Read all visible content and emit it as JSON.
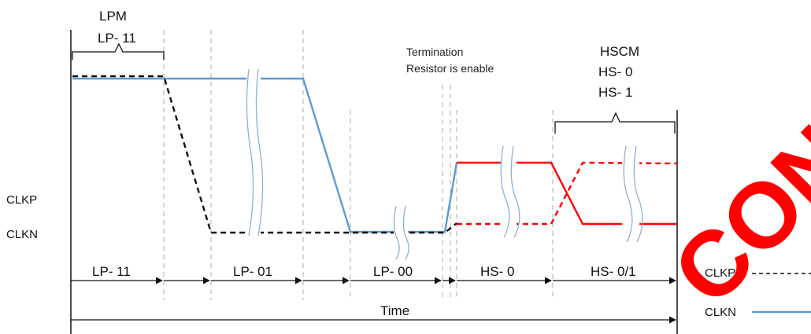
{
  "labels": {
    "lpm": "LPM",
    "lp11_top": "LP- 11",
    "termination_line1": "Termination",
    "termination_line2": "Resistor is enable",
    "hscm": "HSCM",
    "hs0_top": "HS- 0",
    "hs1_top": "HS- 1",
    "clkp_side": "CLKP",
    "clkn_side": "CLKN",
    "time": "Time"
  },
  "states": [
    "LP- 11",
    "LP- 01",
    "LP- 00",
    "HS- 0",
    "HS- 0/1"
  ],
  "legend": [
    {
      "name": "CLKP",
      "style": "dashed",
      "color": "#111111"
    },
    {
      "name": "CLKN",
      "style": "solid",
      "color": "#5b9bd5"
    }
  ],
  "watermark": "CONFIDENTIAL",
  "colors": {
    "clkp": "#111111",
    "clkn": "#5b9bd5",
    "hs": "#ff0000",
    "watermark": "#ff0000",
    "guides": "#bfbfbf",
    "break": "#8fb0d0"
  }
}
